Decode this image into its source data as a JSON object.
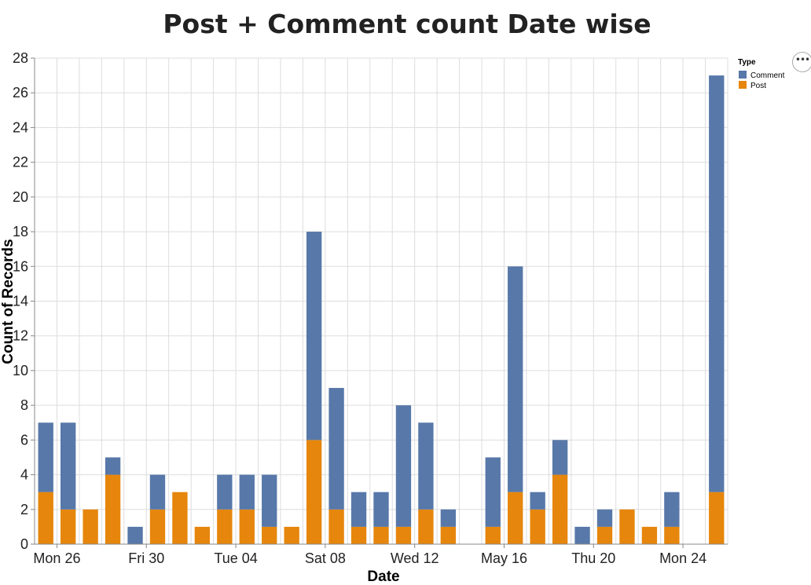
{
  "menu": {
    "icon": "ellipsis-icon",
    "glyph": "•••"
  },
  "chart_data": {
    "type": "bar",
    "stacked": true,
    "title": "Post + Comment count Date wise",
    "xlabel": "Date",
    "ylabel": "Count of Records",
    "ylim": [
      0,
      28
    ],
    "yticks": [
      0,
      2,
      4,
      6,
      8,
      10,
      12,
      14,
      16,
      18,
      20,
      22,
      24,
      26,
      28
    ],
    "grid": true,
    "legend": {
      "title": "Type",
      "position": "top-right"
    },
    "x_range": [
      "Apr 25",
      "May 26"
    ],
    "x_tick_labels": [
      {
        "date": "Apr 26",
        "label": "Mon 26"
      },
      {
        "date": "Apr 30",
        "label": "Fri 30"
      },
      {
        "date": "May 04",
        "label": "Tue 04"
      },
      {
        "date": "May 08",
        "label": "Sat 08"
      },
      {
        "date": "May 12",
        "label": "Wed 12"
      },
      {
        "date": "May 16",
        "label": "May 16"
      },
      {
        "date": "May 20",
        "label": "Thu 20"
      },
      {
        "date": "May 24",
        "label": "Mon 24"
      }
    ],
    "categories": [
      "Apr 25",
      "Apr 26",
      "Apr 27",
      "Apr 28",
      "Apr 29",
      "Apr 30",
      "May 01",
      "May 02",
      "May 03",
      "May 04",
      "May 05",
      "May 06",
      "May 07",
      "May 08",
      "May 09",
      "May 10",
      "May 11",
      "May 12",
      "May 13",
      "May 14",
      "May 15",
      "May 16",
      "May 17",
      "May 18",
      "May 19",
      "May 20",
      "May 21",
      "May 22",
      "May 23",
      "May 24",
      "May 25",
      "May 26"
    ],
    "series": [
      {
        "name": "Post",
        "color": "#e6860c",
        "values": [
          3,
          2,
          2,
          4,
          0,
          2,
          3,
          1,
          2,
          2,
          1,
          1,
          6,
          2,
          1,
          1,
          1,
          2,
          1,
          0,
          1,
          3,
          2,
          4,
          0,
          1,
          2,
          1,
          1,
          0,
          3,
          0
        ]
      },
      {
        "name": "Comment",
        "color": "#5778a9",
        "values": [
          4,
          5,
          0,
          1,
          1,
          2,
          0,
          0,
          2,
          2,
          3,
          0,
          12,
          7,
          2,
          2,
          7,
          5,
          1,
          0,
          4,
          13,
          1,
          2,
          1,
          1,
          0,
          0,
          2,
          0,
          24,
          0
        ]
      }
    ]
  }
}
